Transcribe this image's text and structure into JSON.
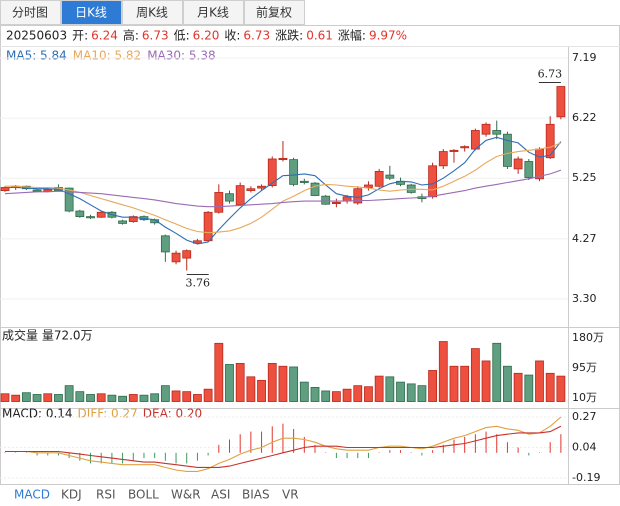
{
  "tabs": [
    "分时图",
    "日K线",
    "周K线",
    "月K线",
    "前复权"
  ],
  "active_tab": 1,
  "indicator_tabs": [
    "MACD",
    "KDJ",
    "RSI",
    "BOLL",
    "W&R",
    "ASI",
    "BIAS",
    "VR"
  ],
  "active_indicator": 0,
  "chart_data": [
    {
      "type": "candlestick",
      "info": [
        {
          "value": "20250603"
        },
        {
          "label": "开:",
          "value": "6.24"
        },
        {
          "label": "高:",
          "value": "6.73"
        },
        {
          "label": "低:",
          "value": "6.20"
        },
        {
          "label": "收:",
          "value": "6.73"
        },
        {
          "label": "涨跌:",
          "value": "0.61"
        },
        {
          "label": "涨幅:",
          "value": "9.97%"
        }
      ],
      "up_color": "#ee5040",
      "down_color": "#5f9e80",
      "open": [
        5.05,
        5.1,
        5.12,
        5.06,
        5.04,
        5.1,
        5.09,
        4.72,
        4.63,
        4.62,
        4.7,
        4.56,
        4.55,
        4.63,
        4.58,
        4.32,
        3.9,
        3.96,
        4.2,
        4.24,
        4.7,
        5.0,
        4.82,
        5.05,
        5.09,
        5.13,
        5.55,
        5.55,
        5.2,
        5.17,
        4.96,
        4.84,
        4.88,
        4.85,
        5.1,
        5.12,
        5.3,
        5.2,
        5.14,
        4.95,
        4.95,
        5.45,
        5.68,
        5.74,
        5.72,
        5.96,
        6.02,
        5.96,
        5.4,
        5.52,
        5.24,
        5.58,
        6.24
      ],
      "high": [
        5.12,
        5.14,
        5.13,
        5.08,
        5.09,
        5.15,
        5.1,
        4.74,
        4.66,
        4.72,
        4.72,
        4.58,
        4.65,
        4.65,
        4.6,
        4.34,
        4.08,
        4.1,
        4.27,
        4.72,
        5.15,
        5.05,
        5.18,
        5.12,
        5.15,
        5.6,
        5.85,
        5.58,
        5.24,
        5.19,
        4.98,
        4.92,
        4.98,
        5.12,
        5.2,
        5.4,
        5.45,
        5.26,
        5.16,
        5.0,
        5.5,
        5.72,
        5.72,
        5.78,
        6.05,
        6.15,
        6.18,
        6.0,
        5.6,
        5.56,
        5.75,
        6.25,
        6.73
      ],
      "low": [
        5.03,
        5.06,
        5.06,
        5.02,
        5.02,
        5.04,
        4.7,
        4.61,
        4.59,
        4.61,
        4.6,
        4.5,
        4.53,
        4.56,
        4.5,
        3.9,
        3.86,
        3.76,
        4.18,
        4.22,
        4.68,
        4.84,
        4.8,
        5.02,
        5.06,
        5.1,
        5.52,
        5.12,
        5.15,
        4.96,
        4.82,
        4.78,
        4.84,
        4.82,
        5.05,
        5.1,
        5.22,
        5.12,
        5.0,
        4.86,
        4.92,
        5.4,
        5.5,
        5.68,
        5.7,
        5.92,
        5.88,
        5.4,
        5.32,
        5.22,
        5.2,
        5.56,
        6.2
      ],
      "close": [
        5.1,
        5.12,
        5.08,
        5.04,
        5.07,
        5.05,
        4.72,
        4.63,
        4.61,
        4.7,
        4.62,
        4.52,
        4.63,
        4.58,
        4.53,
        4.06,
        4.04,
        4.08,
        4.24,
        4.7,
        5.02,
        4.88,
        5.13,
        5.08,
        5.12,
        5.56,
        5.57,
        5.15,
        5.18,
        4.97,
        4.83,
        4.86,
        4.95,
        5.08,
        5.14,
        5.36,
        5.25,
        5.15,
        5.02,
        4.92,
        5.45,
        5.68,
        5.7,
        5.76,
        6.02,
        6.12,
        5.96,
        5.44,
        5.56,
        5.26,
        5.72,
        6.12,
        6.73
      ],
      "series": [
        {
          "name": "MA5",
          "legend": "MA5: 5.84",
          "color": "#2f6db5",
          "values": [
            5.1,
            5.1,
            5.09,
            5.08,
            5.08,
            5.07,
            5.0,
            4.92,
            4.82,
            4.72,
            4.66,
            4.62,
            4.62,
            4.6,
            4.58,
            4.46,
            4.36,
            4.25,
            4.19,
            4.22,
            4.42,
            4.6,
            4.77,
            4.92,
            5.05,
            5.17,
            5.29,
            5.3,
            5.32,
            5.29,
            5.14,
            5.0,
            4.96,
            4.94,
            4.98,
            5.08,
            5.16,
            5.2,
            5.19,
            5.14,
            5.16,
            5.25,
            5.37,
            5.5,
            5.72,
            5.86,
            5.91,
            5.86,
            5.82,
            5.67,
            5.59,
            5.62,
            5.84
          ]
        },
        {
          "name": "MA10",
          "legend": "MA10: 5.82",
          "color": "#e8a85a",
          "values": [
            5.12,
            5.12,
            5.11,
            5.1,
            5.1,
            5.09,
            5.06,
            5.02,
            4.97,
            4.92,
            4.87,
            4.82,
            4.77,
            4.71,
            4.65,
            4.58,
            4.51,
            4.44,
            4.39,
            4.37,
            4.38,
            4.4,
            4.45,
            4.52,
            4.62,
            4.75,
            4.88,
            4.96,
            5.05,
            5.12,
            5.15,
            5.14,
            5.12,
            5.11,
            5.09,
            5.06,
            5.04,
            5.06,
            5.07,
            5.07,
            5.06,
            5.12,
            5.2,
            5.28,
            5.38,
            5.5,
            5.6,
            5.65,
            5.68,
            5.7,
            5.72,
            5.75,
            5.82
          ]
        },
        {
          "name": "MA30",
          "legend": "MA30: 5.38",
          "color": "#9b6bb5",
          "values": [
            5.0,
            5.01,
            5.02,
            5.03,
            5.03,
            5.04,
            5.03,
            5.02,
            5.01,
            5.0,
            4.98,
            4.96,
            4.94,
            4.92,
            4.9,
            4.87,
            4.84,
            4.82,
            4.8,
            4.79,
            4.79,
            4.8,
            4.81,
            4.82,
            4.83,
            4.84,
            4.86,
            4.87,
            4.88,
            4.88,
            4.88,
            4.88,
            4.88,
            4.89,
            4.89,
            4.9,
            4.91,
            4.92,
            4.93,
            4.94,
            4.96,
            4.99,
            5.02,
            5.05,
            5.09,
            5.12,
            5.15,
            5.18,
            5.21,
            5.24,
            5.28,
            5.32,
            5.38
          ]
        }
      ],
      "ylim": [
        3.3,
        7.19
      ],
      "yticks": [
        7.19,
        6.22,
        5.25,
        4.27,
        {
          "value": 3.3,
          "label": "3.30"
        }
      ]
    },
    {
      "type": "bar",
      "title": "成交量 量72.0万",
      "values": [
        22,
        18,
        25,
        20,
        22,
        20,
        45,
        28,
        20,
        22,
        18,
        15,
        20,
        18,
        22,
        45,
        30,
        28,
        20,
        35,
        165,
        105,
        108,
        70,
        60,
        108,
        100,
        98,
        55,
        40,
        30,
        28,
        35,
        45,
        42,
        72,
        70,
        55,
        50,
        45,
        88,
        170,
        100,
        100,
        150,
        115,
        165,
        100,
        80,
        75,
        115,
        80,
        72
      ],
      "ylim": [
        10,
        180
      ],
      "yticks": [
        {
          "value": 180,
          "label": "180万"
        },
        {
          "value": 95,
          "label": "95万"
        },
        {
          "value": 10,
          "label": "10万"
        }
      ]
    },
    {
      "type": "macd",
      "legend": "MACD: 0.14",
      "values": [
        0,
        0,
        0,
        -0.02,
        -0.02,
        -0.02,
        -0.04,
        -0.06,
        -0.08,
        -0.08,
        -0.08,
        -0.08,
        -0.06,
        -0.04,
        -0.04,
        -0.06,
        -0.08,
        -0.08,
        -0.06,
        -0.02,
        0.06,
        0.1,
        0.14,
        0.16,
        0.16,
        0.2,
        0.22,
        0.18,
        0.12,
        0.06,
        0,
        -0.04,
        -0.04,
        -0.04,
        -0.04,
        0,
        0.02,
        0.02,
        0,
        -0.02,
        0.02,
        0.06,
        0.1,
        0.12,
        0.14,
        0.16,
        0.14,
        0.08,
        0.04,
        -0.02,
        0,
        0.08,
        0.14
      ],
      "series": [
        {
          "name": "DIFF",
          "legend": "DIFF: 0.27",
          "color": "#e0a040",
          "values": [
            0.01,
            0.01,
            0.01,
            0.0,
            0.0,
            0.0,
            -0.02,
            -0.04,
            -0.06,
            -0.07,
            -0.08,
            -0.09,
            -0.09,
            -0.09,
            -0.09,
            -0.11,
            -0.13,
            -0.14,
            -0.14,
            -0.12,
            -0.08,
            -0.05,
            -0.01,
            0.02,
            0.04,
            0.08,
            0.11,
            0.11,
            0.1,
            0.08,
            0.05,
            0.03,
            0.02,
            0.02,
            0.02,
            0.04,
            0.05,
            0.05,
            0.04,
            0.03,
            0.05,
            0.08,
            0.11,
            0.13,
            0.16,
            0.19,
            0.2,
            0.18,
            0.17,
            0.14,
            0.15,
            0.2,
            0.27
          ]
        },
        {
          "name": "DEA",
          "legend": "DEA: 0.20",
          "color": "#c8322a",
          "values": [
            0.01,
            0.01,
            0.01,
            0.01,
            0.01,
            0.01,
            0.0,
            -0.01,
            -0.02,
            -0.03,
            -0.04,
            -0.05,
            -0.06,
            -0.07,
            -0.07,
            -0.08,
            -0.09,
            -0.1,
            -0.11,
            -0.11,
            -0.11,
            -0.1,
            -0.08,
            -0.06,
            -0.04,
            -0.02,
            0.0,
            0.02,
            0.04,
            0.05,
            0.05,
            0.05,
            0.04,
            0.04,
            0.04,
            0.04,
            0.04,
            0.04,
            0.04,
            0.04,
            0.04,
            0.05,
            0.06,
            0.07,
            0.09,
            0.11,
            0.13,
            0.14,
            0.15,
            0.15,
            0.15,
            0.16,
            0.2
          ]
        }
      ],
      "ylim": [
        -0.19,
        0.27
      ],
      "yticks": [
        0.27,
        0.04,
        -0.19
      ]
    }
  ]
}
